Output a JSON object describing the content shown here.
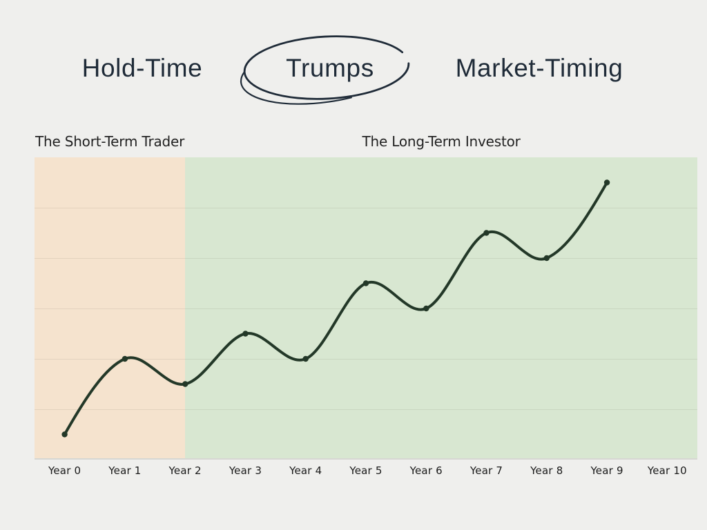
{
  "page": {
    "background": "#efefed",
    "ink_color": "#1f2b38"
  },
  "title": {
    "left": "Hold-Time",
    "circled": "Trumps",
    "right": "Market-Timing",
    "annotation_icon": "hand-drawn-circle"
  },
  "chart_data": {
    "type": "line",
    "title": "Hold-Time Trumps Market-Timing",
    "x_tick_labels": [
      "Year 0",
      "Year 1",
      "Year 2",
      "Year 3",
      "Year 4",
      "Year 5",
      "Year 6",
      "Year 7",
      "Year 8",
      "Year 9",
      "Year 10"
    ],
    "xlim": [
      -0.5,
      10.5
    ],
    "ylim": [
      0,
      6
    ],
    "y_tick_labels": [],
    "y_gridlines": [
      1,
      2,
      3,
      4,
      5
    ],
    "grid": "horizontal-only",
    "legend": "none",
    "line_color": "#233828",
    "marker": "filled-circle",
    "series": [
      {
        "name": "growth-line",
        "x": [
          0,
          1,
          2,
          3,
          4,
          5,
          6,
          7,
          8,
          9
        ],
        "values": [
          0.5,
          2.0,
          1.5,
          2.5,
          2.0,
          3.5,
          3.0,
          4.5,
          4.0,
          5.5
        ]
      }
    ],
    "regions": [
      {
        "label": "The Short-Term Trader",
        "x_from": -0.5,
        "x_to": 2,
        "fill": "#f5e3ce"
      },
      {
        "label": "The Long-Term Investor",
        "x_from": 2,
        "x_to": 10.5,
        "fill": "#d8e7d1"
      }
    ]
  }
}
